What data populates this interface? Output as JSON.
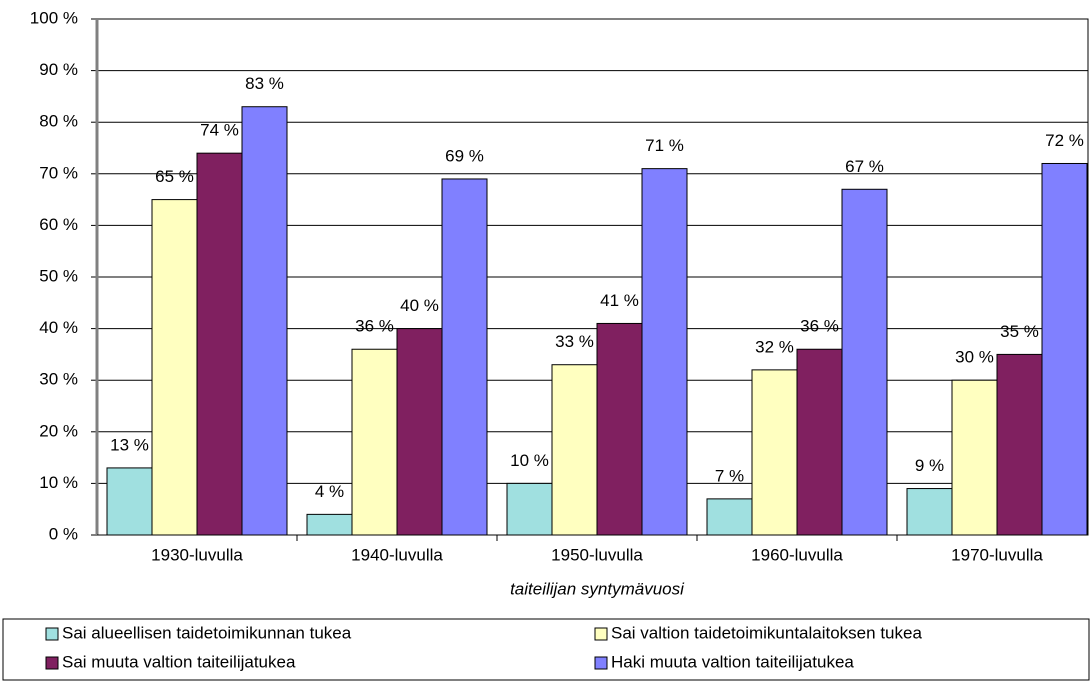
{
  "chart_data": {
    "type": "bar",
    "x_label": "taiteilijan syntymävuosi",
    "categories": [
      "1930-luvulla",
      "1940-luvulla",
      "1950-luvulla",
      "1960-luvulla",
      "1970-luvulla"
    ],
    "series": [
      {
        "name": "Sai alueellisen taidetoimikunnan tukea",
        "color": "#a0e0e0",
        "values": [
          13,
          4,
          10,
          7,
          9
        ],
        "value_labels": [
          "13 %",
          "4 %",
          "10 %",
          "7 %",
          "9 %"
        ]
      },
      {
        "name": "Sai valtion taidetoimikuntalaitoksen tukea",
        "color": "#ffffc0",
        "values": [
          65,
          36,
          33,
          32,
          30
        ],
        "value_labels": [
          "65 %",
          "36 %",
          "33 %",
          "32 %",
          "30 %"
        ]
      },
      {
        "name": "Sai muuta valtion taiteilijatukea",
        "color": "#802060",
        "values": [
          74,
          40,
          41,
          36,
          35
        ],
        "value_labels": [
          "74 %",
          "40 %",
          "41 %",
          "36 %",
          "35 %"
        ]
      },
      {
        "name": "Haki muuta valtion taiteilijatukea",
        "color": "#8080ff",
        "values": [
          83,
          69,
          71,
          67,
          72
        ],
        "value_labels": [
          "83 %",
          "69 %",
          "71 %",
          "67 %",
          "72 %"
        ]
      }
    ],
    "ylim": [
      0,
      100
    ],
    "yticks": [
      {
        "value": 0,
        "label": "0 %"
      },
      {
        "value": 10,
        "label": "10 %"
      },
      {
        "value": 20,
        "label": "20 %"
      },
      {
        "value": 30,
        "label": "30 %"
      },
      {
        "value": 40,
        "label": "40 %"
      },
      {
        "value": 50,
        "label": "50 %"
      },
      {
        "value": 60,
        "label": "60 %"
      },
      {
        "value": 70,
        "label": "70 %"
      },
      {
        "value": 80,
        "label": "80 %"
      },
      {
        "value": 90,
        "label": "90 %"
      },
      {
        "value": 100,
        "label": "100 %"
      }
    ],
    "grid": true,
    "legend": "bottom"
  }
}
